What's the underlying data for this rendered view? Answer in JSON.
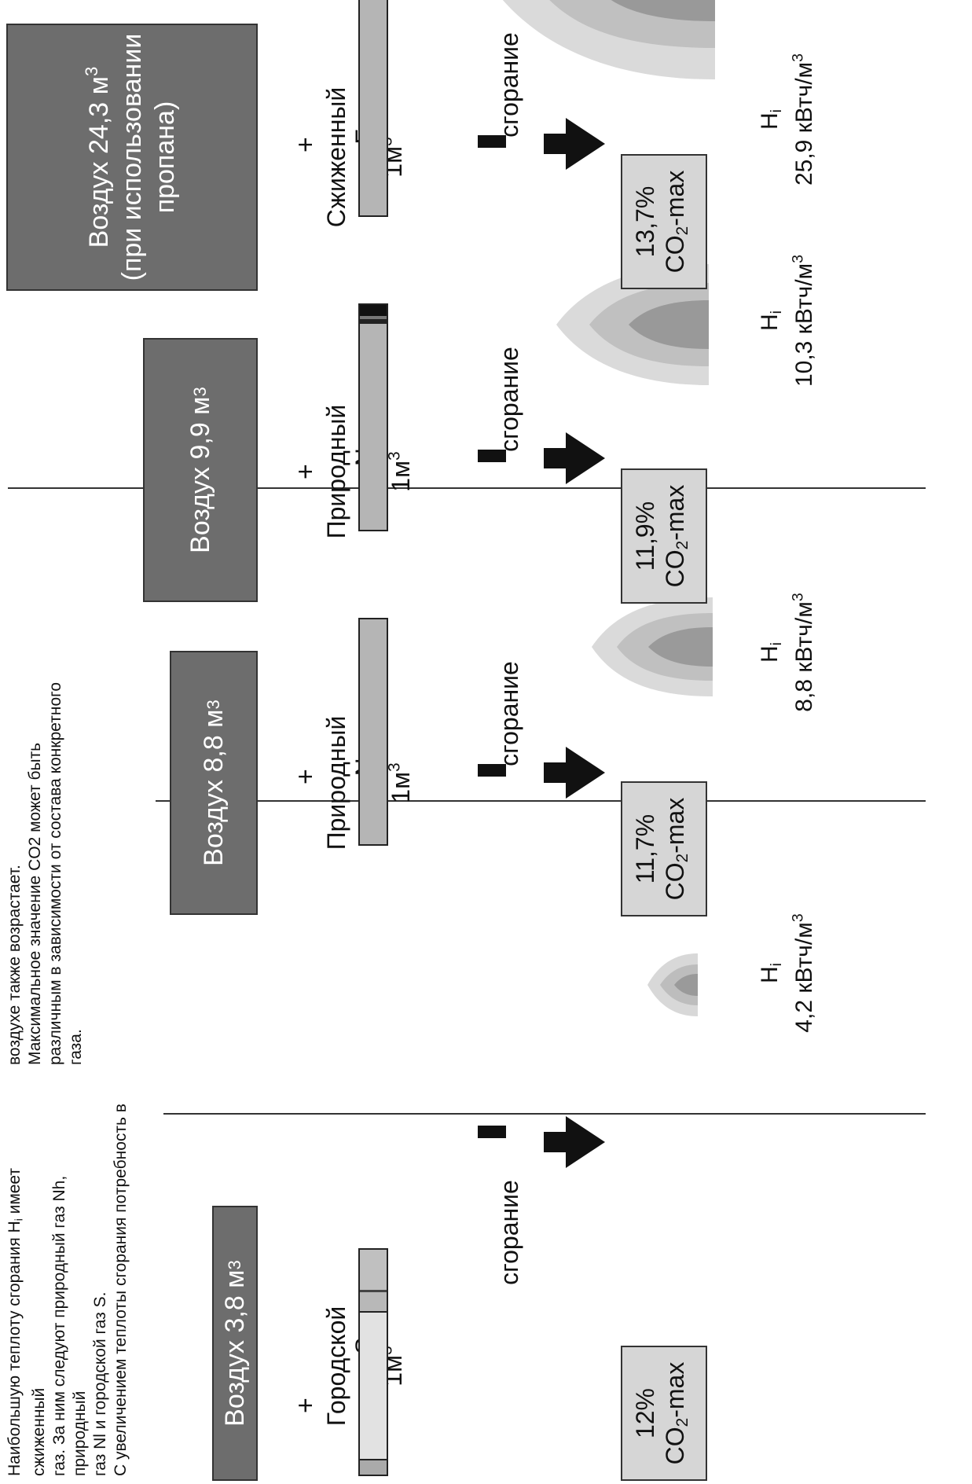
{
  "intro": {
    "col1": [
      "Наибольшую теплоту сгорания Hi имеет сжиженный",
      "газ. За ним следуют природный газ Nh, природный",
      "газ Nl и городской газ S.",
      "С увеличением теплоты сгорания  потребность в"
    ],
    "col2": [
      "воздухе также возрастает.",
      "Максимальное значение CO2 может быть",
      "различным в зависимости от состава конкретного",
      "газа."
    ]
  },
  "plus": "+",
  "combustion_label": "сгорание",
  "co2_suffix": "CO2-max",
  "hi_symbol": "Hi",
  "columns": [
    {
      "air": "Воздух 3,8 м3",
      "gas_name": "Городской газ S",
      "gas_volume": "1м3",
      "co2_percent": "12%",
      "hi_value": "4,2 кВтч/м3",
      "flame_scale": 0.22
    },
    {
      "air": "Воздух 8,8 м3",
      "gas_name": "Природный газ NL",
      "gas_volume": "1м3",
      "co2_percent": "11,7%",
      "hi_value": "8,8 кВтч/м3",
      "flame_scale": 0.5
    },
    {
      "air": "Воздух 9,9 м3",
      "gas_name": "Природный газ NH",
      "gas_volume": "1м3",
      "co2_percent": "11,9%",
      "hi_value": "10,3 кВтч/м3",
      "flame_scale": 0.66
    },
    {
      "air": "Воздух 24,3 м3 (при использовании пропана)",
      "gas_name": "Сжиженный газ F",
      "gas_volume": "1м3",
      "co2_percent": "13,7%",
      "hi_value": "25,9 кВтч/м3",
      "flame_scale": 1.0
    }
  ],
  "colors": {
    "air_box": "#6d6d6d",
    "co2_box": "#d6d6d6",
    "gas_bar": "#b5b5b5"
  }
}
